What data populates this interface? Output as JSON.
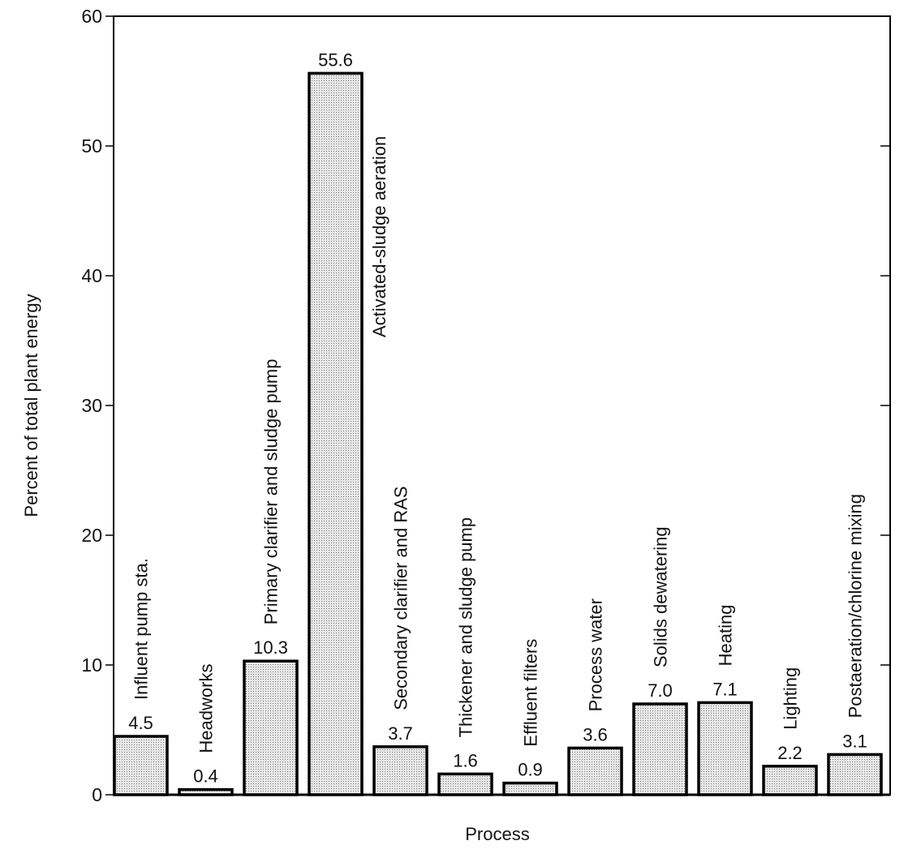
{
  "chart_data": {
    "type": "bar",
    "title": "",
    "xlabel": "Process",
    "ylabel": "Percent of total plant energy",
    "ylim": [
      0,
      60
    ],
    "yticks": [
      0,
      10,
      20,
      30,
      40,
      50,
      60
    ],
    "grid": false,
    "categories": [
      "Influent pump sta.",
      "Headworks",
      "Primary clarifier and sludge pump",
      "Activated-sludge aeration",
      "Secondary clarifier and RAS",
      "Thickener and sludge pump",
      "Effluent filters",
      "Process water",
      "Solids dewatering",
      "Heating",
      "Lighting",
      "Postaeration/chlorine mixing"
    ],
    "values": [
      4.5,
      0.4,
      10.3,
      55.6,
      3.7,
      1.6,
      0.9,
      3.6,
      7.0,
      7.1,
      2.2,
      3.1
    ],
    "value_labels": [
      "4.5",
      "0.4",
      "10.3",
      "55.6",
      "3.7",
      "1.6",
      "0.9",
      "3.6",
      "7.0",
      "7.1",
      "2.2",
      "3.1"
    ],
    "bar_fill": "#dcdcdc",
    "bar_stroke": "#000000"
  }
}
